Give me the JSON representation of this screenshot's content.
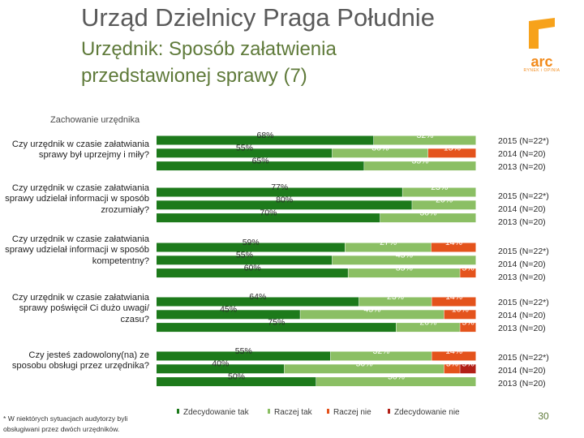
{
  "header": {
    "title": "Urząd Dzielnicy Praga Południe",
    "subtitle": "Urzędnik: Sposób załatwienia przedstawionej sprawy (7)"
  },
  "logo": {
    "name": "arc",
    "tagline": "RYNEK i OPINIA"
  },
  "colors": {
    "dark_green": "#1d7a1b",
    "light_green": "#8bbf64",
    "orange_red": "#e4531c",
    "dark_red": "#b22017"
  },
  "chart_data": {
    "type": "bar",
    "orientation": "horizontal-stacked-100",
    "title": "Zachowanie urzędnika",
    "series_names": [
      "Zdecydowanie tak",
      "Raczej tak",
      "Raczej nie",
      "Zdecydowanie nie"
    ],
    "questions": [
      {
        "label": "Czy urzędnik w czasie załatwiania sprawy był uprzejmy i miły?",
        "rows": [
          {
            "year": "2015 (N=22*)",
            "values": [
              68,
              32,
              0,
              0
            ],
            "labels": [
              "68%",
              "32%",
              "",
              ""
            ]
          },
          {
            "year": "2014 (N=20)",
            "values": [
              55,
              30,
              15,
              0
            ],
            "labels": [
              "55%",
              "30%",
              "15%",
              ""
            ]
          },
          {
            "year": "2013 (N=20)",
            "values": [
              65,
              35,
              0,
              0
            ],
            "labels": [
              "65%",
              "35%",
              "",
              ""
            ]
          }
        ]
      },
      {
        "label": "Czy urzędnik w czasie załatwiania sprawy udzielał informacji w sposób zrozumiały?",
        "rows": [
          {
            "year": "2015 (N=22*)",
            "values": [
              77,
              23,
              0,
              0
            ],
            "labels": [
              "77%",
              "23%",
              "",
              ""
            ]
          },
          {
            "year": "2014 (N=20)",
            "values": [
              80,
              20,
              0,
              0
            ],
            "labels": [
              "80%",
              "20%",
              "",
              ""
            ]
          },
          {
            "year": "2013 (N=20)",
            "values": [
              70,
              30,
              0,
              0
            ],
            "labels": [
              "70%",
              "30%",
              "",
              ""
            ]
          }
        ]
      },
      {
        "label": "Czy urzędnik w czasie załatwiania sprawy udzielał informacji w sposób kompetentny?",
        "rows": [
          {
            "year": "2015 (N=22*)",
            "values": [
              59,
              27,
              14,
              0
            ],
            "labels": [
              "59%",
              "27%",
              "14%",
              ""
            ]
          },
          {
            "year": "2014 (N=20)",
            "values": [
              55,
              45,
              0,
              0
            ],
            "labels": [
              "55%",
              "45%",
              "",
              ""
            ]
          },
          {
            "year": "2013 (N=20)",
            "values": [
              60,
              35,
              5,
              0
            ],
            "labels": [
              "60%",
              "35%",
              "5%",
              ""
            ]
          }
        ]
      },
      {
        "label": "Czy urzędnik w czasie załatwiania sprawy poświęcił Ci dużo uwagi/ czasu?",
        "rows": [
          {
            "year": "2015 (N=22*)",
            "values": [
              64,
              23,
              14,
              0
            ],
            "labels": [
              "64%",
              "23%",
              "14%",
              ""
            ]
          },
          {
            "year": "2014 (N=20)",
            "values": [
              45,
              45,
              10,
              0
            ],
            "labels": [
              "45%",
              "45%",
              "10%",
              ""
            ]
          },
          {
            "year": "2013 (N=20)",
            "values": [
              75,
              20,
              5,
              0
            ],
            "labels": [
              "75%",
              "20%",
              "5%",
              ""
            ]
          }
        ]
      },
      {
        "label": "Czy jesteś zadowolony(na) ze sposobu obsługi przez urzędnika?",
        "rows": [
          {
            "year": "2015 (N=22*)",
            "values": [
              55,
              32,
              14,
              0
            ],
            "labels": [
              "55%",
              "32%",
              "14%",
              ""
            ]
          },
          {
            "year": "2014 (N=20)",
            "values": [
              40,
              50,
              5,
              5
            ],
            "labels": [
              "40%",
              "50%",
              "5%",
              "5%"
            ]
          },
          {
            "year": "2013 (N=20)",
            "values": [
              50,
              50,
              0,
              0
            ],
            "labels": [
              "50%",
              "50%",
              "",
              ""
            ]
          }
        ]
      }
    ]
  },
  "footnote": "* W niektórych sytuacjach audytorzy byli obsługiwani przez dwóch urzędników.",
  "page_number": "30"
}
